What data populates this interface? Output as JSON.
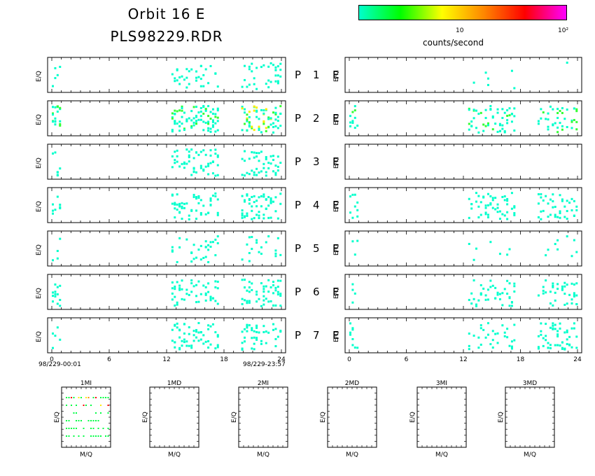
{
  "header": {
    "title_line1": "Orbit 16 E",
    "title_line2": "PLS98229.RDR",
    "colorbar_tick_10": "10",
    "colorbar_tick_100": "10²",
    "colorbar_label": "counts/second",
    "colorbar_colors": [
      "#00ffcc",
      "#00ff00",
      "#ffff00",
      "#ff8800",
      "#ff0000",
      "#ff00ff"
    ]
  },
  "panels": {
    "ylabel": "E/Q",
    "rows": [
      {
        "p": "P",
        "n": "1",
        "e": "E"
      },
      {
        "p": "P",
        "n": "2",
        "e": "E"
      },
      {
        "p": "P",
        "n": "3",
        "e": "E"
      },
      {
        "p": "P",
        "n": "4",
        "e": "E"
      },
      {
        "p": "P",
        "n": "5",
        "e": "E"
      },
      {
        "p": "P",
        "n": "6",
        "e": "E"
      },
      {
        "p": "P",
        "n": "7",
        "e": "E"
      }
    ],
    "left_time_start": "98/229-00:01",
    "left_time_end": "98/229-23:57"
  },
  "chart_data": {
    "type": "heatmap",
    "x_ticks": [
      "0",
      "6",
      "12",
      "18",
      "24"
    ],
    "xlim": [
      0,
      24
    ],
    "color_scale": "log counts/second, 1 to 100",
    "left_activity_hours": [
      [
        0.0,
        1.0
      ],
      [
        12.5,
        17.5
      ],
      [
        19.8,
        24.0
      ]
    ],
    "right_activity_hours": [
      [
        0.0,
        1.0
      ],
      [
        12.5,
        17.5
      ],
      [
        19.8,
        24.0
      ]
    ]
  },
  "mass_panels": {
    "xlabel": "M/Q",
    "ylabel": "E/Q",
    "titles": [
      "1MI",
      "1MD",
      "2MI",
      "2MD",
      "3MI",
      "3MD"
    ]
  }
}
